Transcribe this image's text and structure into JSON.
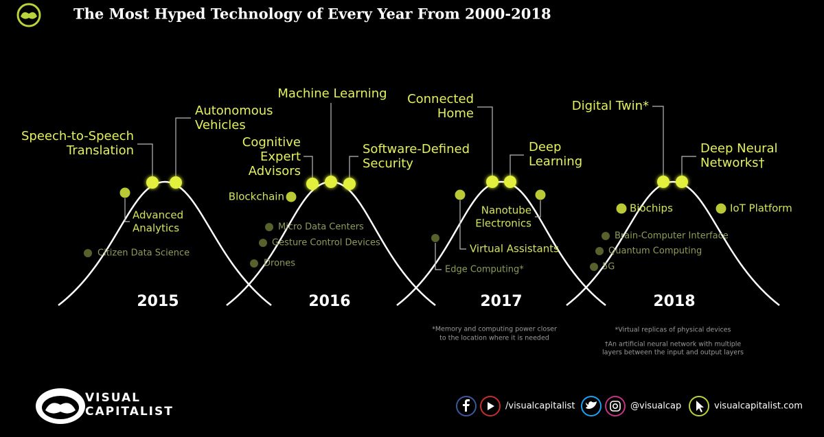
{
  "title": "The Most Hyped Technology of Every Year From 2000-2018",
  "years": [
    {
      "year": "2015",
      "technologies": [
        {
          "label": [
            "Citizen Data Science"
          ]
        },
        {
          "label": [
            "Advanced",
            "Analytics"
          ]
        },
        {
          "label": [
            "Speech-to-Speech",
            "Translation"
          ]
        },
        {
          "label": [
            "Autonomous",
            "Vehicles"
          ]
        }
      ],
      "notes": []
    },
    {
      "year": "2016",
      "technologies": [
        {
          "label": [
            "Drones"
          ]
        },
        {
          "label": [
            "Gesture Control Devices"
          ]
        },
        {
          "label": [
            "Micro Data Centers"
          ]
        },
        {
          "label": [
            "Blockchain"
          ]
        },
        {
          "label": [
            "Cognitive",
            "Expert",
            "Advisors"
          ]
        },
        {
          "label": [
            "Machine Learning"
          ]
        },
        {
          "label": [
            "Software-Defined",
            "Security"
          ]
        }
      ],
      "notes": []
    },
    {
      "year": "2017",
      "technologies": [
        {
          "label": [
            "Edge Computing*"
          ]
        },
        {
          "label": [
            "Virtual Assistants"
          ]
        },
        {
          "label": [
            "Connected",
            "Home"
          ]
        },
        {
          "label": [
            "Deep",
            "Learning"
          ]
        },
        {
          "label": [
            "Nanotube",
            "Electronics"
          ]
        }
      ],
      "notes": [
        "*Memory and computing power closer",
        "to the location where it is needed"
      ]
    },
    {
      "year": "2018",
      "technologies": [
        {
          "label": [
            "5G"
          ]
        },
        {
          "label": [
            "Quantum Computing"
          ]
        },
        {
          "label": [
            "Brain-Computer Interface"
          ]
        },
        {
          "label": [
            "Biochips"
          ]
        },
        {
          "label": [
            "Digital Twin*"
          ]
        },
        {
          "label": [
            "Deep Neural",
            "Networks†"
          ]
        },
        {
          "label": [
            "IoT Platform"
          ]
        }
      ],
      "notes": [
        "*Virtual replicas of physical devices",
        "†An artificial neural network with multiple",
        "layers between the input and output layers"
      ]
    }
  ],
  "footer": {
    "brand": [
      "VISUAL",
      "CAPITALIST"
    ],
    "social": [
      "/visualcapitalist",
      "@visualcap",
      "visualcapitalist.com"
    ]
  }
}
